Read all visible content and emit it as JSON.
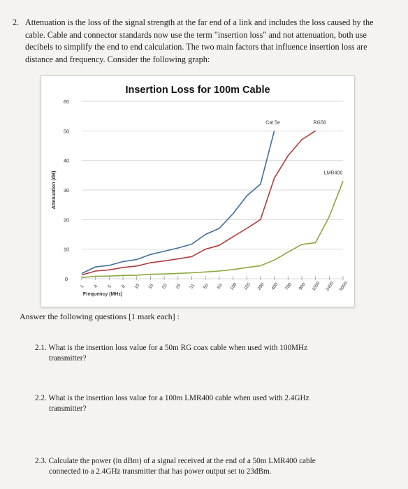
{
  "question": {
    "number": "2.",
    "intro": "Attenuation is the loss of the signal strength at the far end of a link and includes the loss caused by the cable. Cable and connector standards now use the term \"insertion loss\" and not attenuation, both use decibels to simplify the end to end calculation. The two main factors that influence insertion loss are distance and frequency. Consider the following graph:"
  },
  "chart_data": {
    "type": "line",
    "title": "Insertion Loss for 100m Cable",
    "xlabel": "Frequency (MHz)",
    "ylabel": "Attenuation (dB)",
    "ylim": [
      0,
      60
    ],
    "yticks": [
      0,
      10,
      20,
      30,
      40,
      50,
      60
    ],
    "grid": true,
    "categories": [
      "1",
      "4",
      "5",
      "8",
      "10",
      "16",
      "20",
      "25",
      "31",
      "50",
      "63",
      "100",
      "155",
      "200",
      "400",
      "700",
      "900",
      "1000",
      "2400",
      "5000"
    ],
    "series": [
      {
        "name": "Cat 5e",
        "color": "#3f6f9a",
        "values": [
          1.8,
          4.0,
          4.5,
          5.8,
          6.5,
          8.2,
          9.3,
          10.4,
          11.7,
          15.0,
          17.0,
          22.0,
          28.0,
          32.0,
          50.0,
          null,
          null,
          null,
          null,
          null
        ]
      },
      {
        "name": "RG58",
        "color": "#b23a3a",
        "values": [
          1.3,
          2.6,
          3.0,
          3.8,
          4.3,
          5.4,
          6.0,
          6.7,
          7.5,
          10.0,
          11.3,
          14.2,
          17.0,
          20.0,
          34.0,
          41.6,
          47.0,
          50.0,
          null,
          null
        ]
      },
      {
        "name": "LMR400",
        "color": "#8aa93b",
        "values": [
          0.4,
          0.8,
          0.9,
          1.1,
          1.2,
          1.5,
          1.6,
          1.8,
          2.0,
          2.3,
          2.6,
          3.1,
          3.8,
          4.4,
          6.3,
          9.0,
          11.6,
          12.2,
          21.0,
          33.0
        ]
      }
    ],
    "series_labels": [
      {
        "name": "Cat 5e",
        "text": "Cat 5e"
      },
      {
        "name": "RG58",
        "text": "RG58"
      },
      {
        "name": "LMR400",
        "text": "LMR400"
      }
    ]
  },
  "answer_intro": "Answer the following questions [1 mark each] :",
  "sub_questions": [
    {
      "number": "2.1.",
      "first": "What is the insertion loss value for a 50m RG coax cable when used with 100MHz",
      "rest": "transmitter?"
    },
    {
      "number": "2.2.",
      "first": "What is the insertion loss value for a 100m LMR400 cable when used with 2.4GHz",
      "rest": "transmitter?"
    },
    {
      "number": "2.3.",
      "first": "Calculate the power (in dBm) of a signal received at the end of a 50m LMR400 cable",
      "rest": "connected to a 2.4GHz transmitter that has power output set to 23dBm."
    }
  ]
}
